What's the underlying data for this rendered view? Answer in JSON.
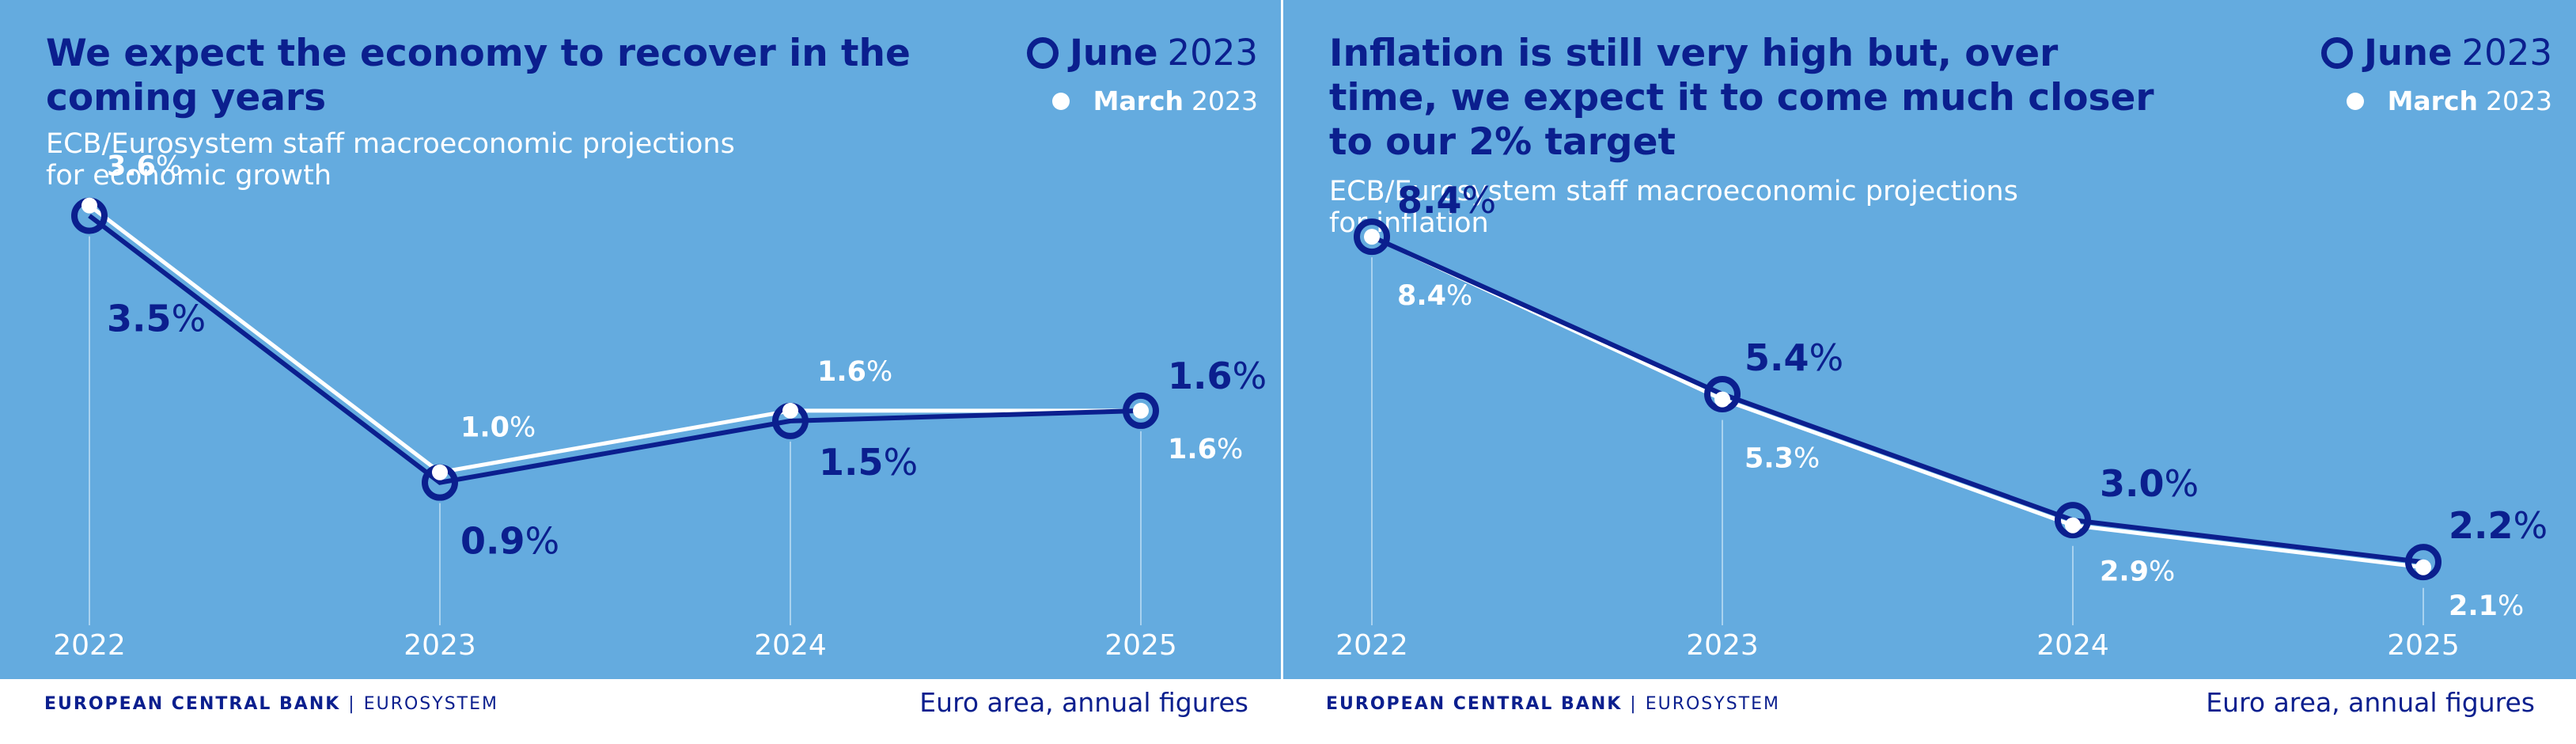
{
  "legend": {
    "june_label": "June",
    "june_year": "2023",
    "march_label": "March",
    "march_year": "2023"
  },
  "footer": {
    "logo_main": "EUROPEAN CENTRAL BANK",
    "logo_sep": "|",
    "logo_sub": "EUROSYSTEM",
    "note": "Euro area, annual figures"
  },
  "colors": {
    "background": "#64abdf",
    "june": "#0b1f8e",
    "march": "#ffffff"
  },
  "chart_data": [
    {
      "type": "line",
      "title": "We expect the economy to recover in the coming years",
      "subtitle_lines": [
        "ECB/Eurosystem staff macroeconomic projections",
        "for economic growth"
      ],
      "categories": [
        "2022",
        "2023",
        "2024",
        "2025"
      ],
      "series": [
        {
          "name": "June 2023",
          "values": [
            3.5,
            0.9,
            1.5,
            1.6
          ],
          "labels": [
            "3.5%",
            "0.9%",
            "1.5%",
            "1.6%"
          ]
        },
        {
          "name": "March 2023",
          "values": [
            3.6,
            1.0,
            1.6,
            1.6
          ],
          "labels": [
            "3.6%",
            "1.0%",
            "1.6%",
            "1.6%"
          ]
        }
      ],
      "ylim": [
        -1.0,
        4.6
      ],
      "grid": false,
      "legend_position": "top-right"
    },
    {
      "type": "line",
      "title": "Inflation is still very high but, over time, we expect it to come much closer to our 2% target",
      "subtitle_lines": [
        "ECB/Eurosystem staff macroeconomic projections for inflation"
      ],
      "categories": [
        "2022",
        "2023",
        "2024",
        "2025"
      ],
      "series": [
        {
          "name": "June 2023",
          "values": [
            8.4,
            5.4,
            3.0,
            2.2
          ],
          "labels": [
            "8.4%",
            "5.4%",
            "3.0%",
            "2.2%"
          ]
        },
        {
          "name": "March 2023",
          "values": [
            8.4,
            5.3,
            2.9,
            2.1
          ],
          "labels": [
            "8.4%",
            "5.3%",
            "2.9%",
            "2.1%"
          ]
        }
      ],
      "ylim": [
        0.0,
        10.8
      ],
      "grid": false,
      "legend_position": "top-right"
    }
  ]
}
